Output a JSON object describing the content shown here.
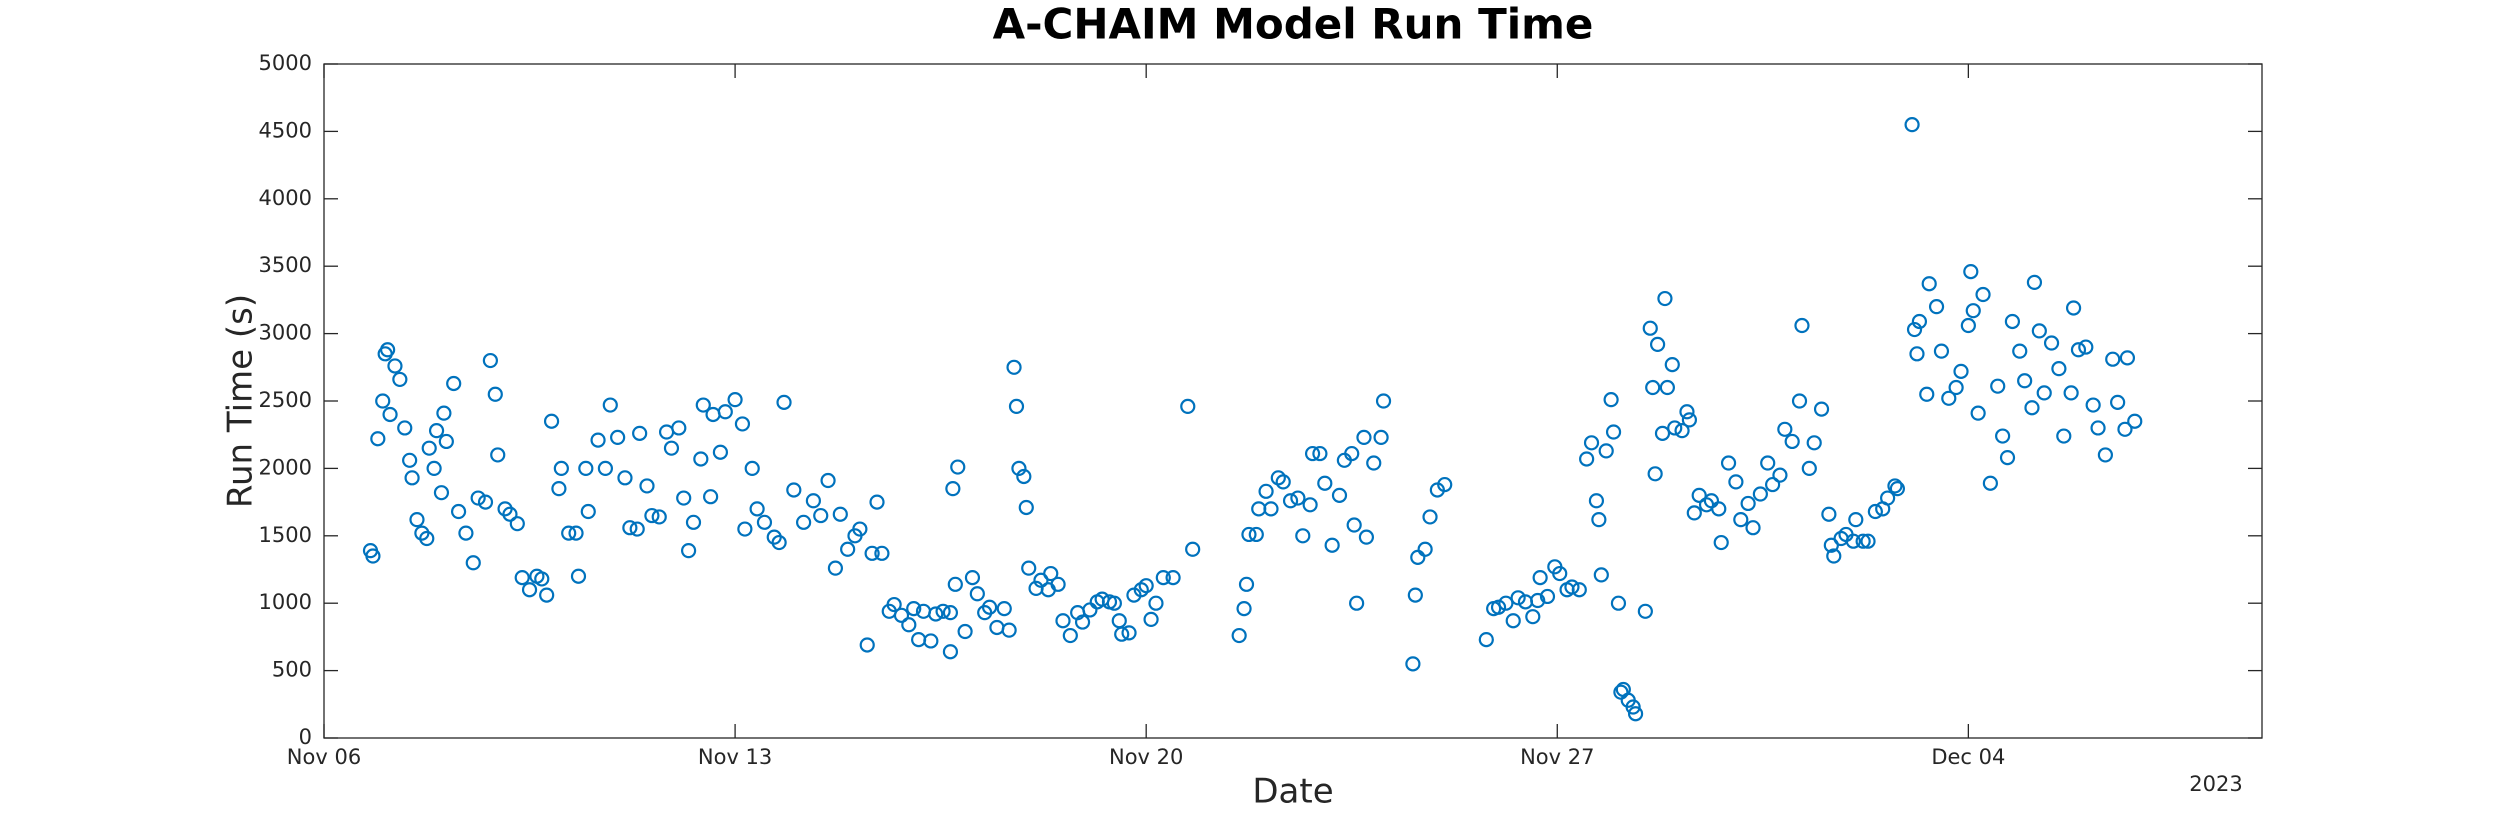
{
  "chart_data": {
    "type": "scatter",
    "title": "A-CHAIM Model Run Time",
    "x_label": "Date",
    "y_label": "Run Time (s)",
    "x_year_label": "2023",
    "color": "#0072bd",
    "grid": false,
    "xlim": [
      "2023-11-06T00:00",
      "2023-12-09T00:00"
    ],
    "xticks": [
      {
        "value": "2023-11-06T00:00",
        "label": "Nov 06"
      },
      {
        "value": "2023-11-13T00:00",
        "label": "Nov 13"
      },
      {
        "value": "2023-11-20T00:00",
        "label": "Nov 20"
      },
      {
        "value": "2023-11-27T00:00",
        "label": "Nov 27"
      },
      {
        "value": "2023-12-04T00:00",
        "label": "Dec 04"
      }
    ],
    "ylim": [
      0,
      5000
    ],
    "yticks": [
      0,
      500,
      1000,
      1500,
      2000,
      2500,
      3000,
      3500,
      4000,
      4500,
      5000
    ],
    "x": [
      "2023-11-06T19:00",
      "2023-11-06T20:00",
      "2023-11-06T22:00",
      "2023-11-07T00:00",
      "2023-11-07T01:00",
      "2023-11-07T02:00",
      "2023-11-07T03:00",
      "2023-11-07T05:00",
      "2023-11-07T07:00",
      "2023-11-07T09:00",
      "2023-11-07T11:00",
      "2023-11-07T12:00",
      "2023-11-07T14:00",
      "2023-11-07T16:00",
      "2023-11-07T18:00",
      "2023-11-07T19:00",
      "2023-11-07T21:00",
      "2023-11-07T22:00",
      "2023-11-08T00:00",
      "2023-11-08T01:00",
      "2023-11-08T02:00",
      "2023-11-08T05:00",
      "2023-11-08T07:00",
      "2023-11-08T10:00",
      "2023-11-08T13:00",
      "2023-11-08T15:00",
      "2023-11-08T18:00",
      "2023-11-08T20:00",
      "2023-11-08T22:00",
      "2023-11-08T23:00",
      "2023-11-09T02:00",
      "2023-11-09T04:00",
      "2023-11-09T07:00",
      "2023-11-09T09:00",
      "2023-11-09T12:00",
      "2023-11-09T15:00",
      "2023-11-09T17:00",
      "2023-11-09T19:00",
      "2023-11-09T21:00",
      "2023-11-10T00:00",
      "2023-11-10T01:00",
      "2023-11-10T04:00",
      "2023-11-10T07:00",
      "2023-11-10T08:00",
      "2023-11-10T11:00",
      "2023-11-10T12:00",
      "2023-11-10T16:00",
      "2023-11-10T19:00",
      "2023-11-10T21:00",
      "2023-11-11T00:00",
      "2023-11-11T03:00",
      "2023-11-11T05:00",
      "2023-11-11T08:00",
      "2023-11-11T09:00",
      "2023-11-11T12:00",
      "2023-11-11T14:00",
      "2023-11-11T17:00",
      "2023-11-11T20:00",
      "2023-11-11T22:00",
      "2023-11-12T01:00",
      "2023-11-12T03:00",
      "2023-11-12T05:00",
      "2023-11-12T07:00",
      "2023-11-12T10:00",
      "2023-11-12T11:00",
      "2023-11-12T14:00",
      "2023-11-12T15:00",
      "2023-11-12T18:00",
      "2023-11-12T20:00",
      "2023-11-13T00:00",
      "2023-11-13T03:00",
      "2023-11-13T04:00",
      "2023-11-13T07:00",
      "2023-11-13T09:00",
      "2023-11-13T12:00",
      "2023-11-13T16:00",
      "2023-11-13T18:00",
      "2023-11-13T20:00",
      "2023-11-14T00:00",
      "2023-11-14T04:00",
      "2023-11-14T08:00",
      "2023-11-14T11:00",
      "2023-11-14T14:00",
      "2023-11-14T17:00",
      "2023-11-14T19:00",
      "2023-11-14T22:00",
      "2023-11-15T01:00",
      "2023-11-15T03:00",
      "2023-11-15T06:00",
      "2023-11-15T08:00",
      "2023-11-15T10:00",
      "2023-11-15T12:00",
      "2023-11-15T15:00",
      "2023-11-15T17:00",
      "2023-11-15T20:00",
      "2023-11-15T23:00",
      "2023-11-16T01:00",
      "2023-11-16T03:00",
      "2023-11-16T05:00",
      "2023-11-16T08:00",
      "2023-11-16T10:00",
      "2023-11-16T13:00",
      "2023-11-16T16:00",
      "2023-11-16T16:00",
      "2023-11-16T17:00",
      "2023-11-16T18:00",
      "2023-11-16T19:00",
      "2023-11-16T22:00",
      "2023-11-17T01:00",
      "2023-11-17T03:00",
      "2023-11-17T06:00",
      "2023-11-17T08:00",
      "2023-11-17T11:00",
      "2023-11-17T14:00",
      "2023-11-17T16:00",
      "2023-11-17T18:00",
      "2023-11-17T19:00",
      "2023-11-17T20:00",
      "2023-11-17T22:00",
      "2023-11-17T23:00",
      "2023-11-18T00:00",
      "2023-11-18T03:00",
      "2023-11-18T05:00",
      "2023-11-18T08:00",
      "2023-11-18T09:00",
      "2023-11-18T12:00",
      "2023-11-18T14:00",
      "2023-11-18T17:00",
      "2023-11-18T20:00",
      "2023-11-18T22:00",
      "2023-11-19T01:00",
      "2023-11-19T04:00",
      "2023-11-19T06:00",
      "2023-11-19T09:00",
      "2023-11-19T11:00",
      "2023-11-19T13:00",
      "2023-11-19T14:00",
      "2023-11-19T17:00",
      "2023-11-19T19:00",
      "2023-11-19T22:00",
      "2023-11-20T00:00",
      "2023-11-20T02:00",
      "2023-11-20T04:00",
      "2023-11-20T07:00",
      "2023-11-20T11:00",
      "2023-11-20T17:00",
      "2023-11-20T19:00",
      "2023-11-21T14:00",
      "2023-11-21T16:00",
      "2023-11-21T17:00",
      "2023-11-21T18:00",
      "2023-11-21T21:00",
      "2023-11-21T22:00",
      "2023-11-22T01:00",
      "2023-11-22T03:00",
      "2023-11-22T06:00",
      "2023-11-22T08:00",
      "2023-11-22T11:00",
      "2023-11-22T14:00",
      "2023-11-22T16:00",
      "2023-11-22T19:00",
      "2023-11-22T20:00",
      "2023-11-22T23:00",
      "2023-11-23T01:00",
      "2023-11-23T04:00",
      "2023-11-23T07:00",
      "2023-11-23T09:00",
      "2023-11-23T12:00",
      "2023-11-23T13:00",
      "2023-11-23T14:00",
      "2023-11-23T17:00",
      "2023-11-23T18:00",
      "2023-11-23T21:00",
      "2023-11-24T00:00",
      "2023-11-24T01:00",
      "2023-11-24T13:00",
      "2023-11-24T14:00",
      "2023-11-24T15:00",
      "2023-11-24T18:00",
      "2023-11-24T20:00",
      "2023-11-24T23:00",
      "2023-11-25T02:00",
      "2023-11-25T19:00",
      "2023-11-25T22:00",
      "2023-11-26T00:00",
      "2023-11-26T03:00",
      "2023-11-26T06:00",
      "2023-11-26T08:00",
      "2023-11-26T11:00",
      "2023-11-26T14:00",
      "2023-11-26T16:00",
      "2023-11-26T17:00",
      "2023-11-26T20:00",
      "2023-11-26T23:00",
      "2023-11-27T01:00",
      "2023-11-27T04:00",
      "2023-11-27T06:00",
      "2023-11-27T09:00",
      "2023-11-27T12:00",
      "2023-11-27T14:00",
      "2023-11-27T16:00",
      "2023-11-27T17:00",
      "2023-11-27T18:00",
      "2023-11-27T20:00",
      "2023-11-27T22:00",
      "2023-11-27T23:00",
      "2023-11-28T01:00",
      "2023-11-28T02:00",
      "2023-11-28T03:00",
      "2023-11-28T05:00",
      "2023-11-28T07:00",
      "2023-11-28T08:00",
      "2023-11-28T12:00",
      "2023-11-28T14:00",
      "2023-11-28T15:00",
      "2023-11-28T16:00",
      "2023-11-28T17:00",
      "2023-11-28T19:00",
      "2023-11-28T20:00",
      "2023-11-28T21:00",
      "2023-11-28T23:00",
      "2023-11-29T00:00",
      "2023-11-29T03:00",
      "2023-11-29T05:00",
      "2023-11-29T06:00",
      "2023-11-29T08:00",
      "2023-11-29T10:00",
      "2023-11-29T13:00",
      "2023-11-29T15:00",
      "2023-11-29T18:00",
      "2023-11-29T19:00",
      "2023-11-29T22:00",
      "2023-11-30T01:00",
      "2023-11-30T03:00",
      "2023-11-30T06:00",
      "2023-11-30T08:00",
      "2023-11-30T11:00",
      "2023-11-30T14:00",
      "2023-11-30T16:00",
      "2023-11-30T19:00",
      "2023-11-30T21:00",
      "2023-12-01T00:00",
      "2023-12-01T03:00",
      "2023-12-01T04:00",
      "2023-12-01T07:00",
      "2023-12-01T09:00",
      "2023-12-01T12:00",
      "2023-12-01T15:00",
      "2023-12-01T16:00",
      "2023-12-01T17:00",
      "2023-12-01T20:00",
      "2023-12-01T22:00",
      "2023-12-02T01:00",
      "2023-12-02T02:00",
      "2023-12-02T05:00",
      "2023-12-02T07:00",
      "2023-12-02T10:00",
      "2023-12-02T13:00",
      "2023-12-02T15:00",
      "2023-12-02T18:00",
      "2023-12-02T19:00",
      "2023-12-03T01:00",
      "2023-12-03T02:00",
      "2023-12-03T03:00",
      "2023-12-03T04:00",
      "2023-12-03T07:00",
      "2023-12-03T08:00",
      "2023-12-03T11:00",
      "2023-12-03T13:00",
      "2023-12-03T16:00",
      "2023-12-03T19:00",
      "2023-12-03T21:00",
      "2023-12-04T00:00",
      "2023-12-04T01:00",
      "2023-12-04T02:00",
      "2023-12-04T04:00",
      "2023-12-04T06:00",
      "2023-12-04T09:00",
      "2023-12-04T12:00",
      "2023-12-04T14:00",
      "2023-12-04T16:00",
      "2023-12-04T18:00",
      "2023-12-04T21:00",
      "2023-12-04T23:00",
      "2023-12-05T02:00",
      "2023-12-05T03:00",
      "2023-12-05T05:00",
      "2023-12-05T07:00",
      "2023-12-05T10:00",
      "2023-12-05T13:00",
      "2023-12-05T15:00",
      "2023-12-05T18:00",
      "2023-12-05T19:00",
      "2023-12-05T21:00",
      "2023-12-06T00:00",
      "2023-12-06T03:00",
      "2023-12-06T05:00",
      "2023-12-06T08:00",
      "2023-12-06T11:00",
      "2023-12-06T13:00",
      "2023-12-06T16:00",
      "2023-12-06T17:00",
      "2023-12-06T20:00"
    ],
    "values": [
      1390,
      1350,
      2220,
      2500,
      2850,
      2880,
      2400,
      2760,
      2660,
      2300,
      2060,
      1930,
      1620,
      1520,
      1480,
      2150,
      2000,
      2280,
      1820,
      2410,
      2200,
      2630,
      1680,
      1520,
      1300,
      1780,
      1750,
      2800,
      2550,
      2100,
      1700,
      1660,
      1590,
      1190,
      1100,
      1200,
      1180,
      1060,
      2350,
      1850,
      2000,
      1520,
      1520,
      1200,
      2000,
      1680,
      2210,
      2000,
      2470,
      2230,
      1930,
      1560,
      1550,
      2260,
      1870,
      1650,
      1640,
      2270,
      2150,
      2300,
      1780,
      1390,
      1600,
      2070,
      2470,
      1790,
      2400,
      2120,
      2420,
      2510,
      2330,
      1550,
      2000,
      1700,
      1600,
      1490,
      1450,
      2490,
      1840,
      1600,
      1760,
      1650,
      1910,
      1260,
      1660,
      1400,
      1500,
      1550,
      690,
      1370,
      1750,
      1370,
      940,
      990,
      910,
      840,
      960,
      730,
      940,
      720,
      920,
      940,
      930,
      640,
      1850,
      1140,
      2010,
      790,
      1190,
      1070,
      930,
      970,
      820,
      960,
      800,
      2750,
      2460,
      2000,
      1940,
      1710,
      1260,
      1110,
      1170,
      1100,
      1220,
      1140,
      870,
      760,
      930,
      860,
      950,
      1010,
      1030,
      1010,
      1000,
      870,
      770,
      780,
      1060,
      1100,
      1130,
      880,
      1000,
      1190,
      1190,
      2460,
      1400,
      760,
      960,
      1140,
      1510,
      1510,
      1700,
      1830,
      1700,
      1930,
      1900,
      1760,
      1780,
      1500,
      1730,
      2110,
      2110,
      1890,
      1430,
      1800,
      2060,
      2110,
      1580,
      1000,
      2230,
      1490,
      2040,
      2230,
      2500,
      550,
      1060,
      1340,
      1400,
      1640,
      1840,
      1880,
      730,
      960,
      970,
      1000,
      870,
      1040,
      1010,
      900,
      1020,
      1190,
      1050,
      1270,
      1220,
      1100,
      1120,
      1100,
      2070,
      2190,
      1760,
      1620,
      1210,
      2130,
      2510,
      2270,
      1000,
      340,
      360,
      280,
      230,
      180,
      940,
      3040,
      2600,
      1960,
      2920,
      2260,
      3260,
      2600,
      2770,
      2300,
      2280,
      2420,
      2360,
      1670,
      1800,
      1730,
      1760,
      1700,
      1450,
      2040,
      1900,
      1620,
      1740,
      1560,
      1810,
      2040,
      1880,
      1950,
      2290,
      2200,
      2500,
      3060,
      2000,
      2190,
      2440,
      1660,
      1430,
      1350,
      1480,
      1510,
      1460,
      1620,
      1460,
      1460,
      1680,
      1700,
      1780,
      1870,
      1850,
      4550,
      3030,
      2850,
      3090,
      2550,
      3370,
      3200,
      2870,
      2520,
      2600,
      2720,
      3060,
      3460,
      3170,
      2410,
      3290,
      1890,
      2610,
      2240,
      2080,
      3090,
      2870,
      2650,
      2450,
      3380,
      3020,
      2560,
      2930,
      2740,
      2240,
      2560,
      3190,
      2880,
      2900,
      2470,
      2300,
      2100,
      2810,
      2490,
      2290,
      2820,
      2350
    ]
  }
}
